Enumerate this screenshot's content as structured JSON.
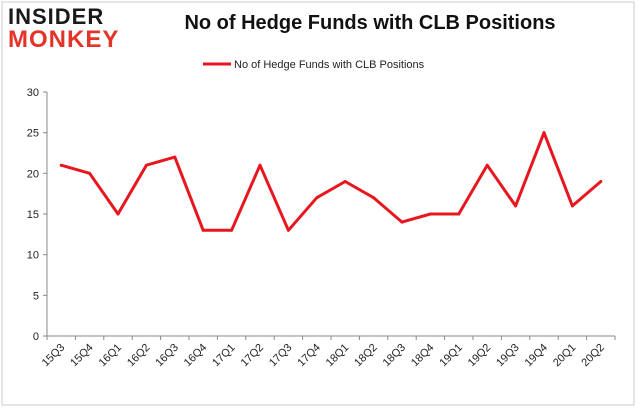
{
  "logo": {
    "line1": "INSIDER",
    "line2": "MONKEY"
  },
  "colors": {
    "series": "#e8171f",
    "brand_red": "#e4342a",
    "axis": "#888888",
    "grid": "#cccccc"
  },
  "chart_data": {
    "type": "line",
    "title": "No of Hedge Funds with CLB Positions",
    "xlabel": "",
    "ylabel": "",
    "categories": [
      "15Q3",
      "15Q4",
      "16Q1",
      "16Q2",
      "16Q3",
      "16Q4",
      "17Q1",
      "17Q2",
      "17Q3",
      "17Q4",
      "18Q1",
      "18Q2",
      "18Q3",
      "18Q4",
      "19Q1",
      "19Q2",
      "19Q3",
      "19Q4",
      "20Q1",
      "20Q2"
    ],
    "series": [
      {
        "name": "No of Hedge Funds with CLB Positions",
        "values": [
          21,
          20,
          15,
          21,
          22,
          13,
          13,
          21,
          13,
          17,
          19,
          17,
          14,
          15,
          15,
          21,
          16,
          25,
          16,
          19
        ]
      }
    ],
    "ylim": [
      0,
      30
    ],
    "yticks": [
      0,
      5,
      10,
      15,
      20,
      25,
      30
    ],
    "grid": false,
    "legend": "top-center"
  }
}
